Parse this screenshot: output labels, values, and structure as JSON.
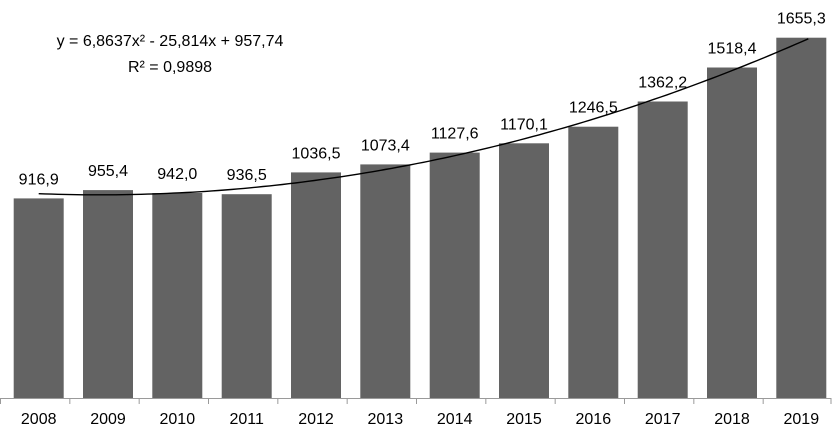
{
  "chart_data": {
    "type": "bar",
    "categories": [
      "2008",
      "2009",
      "2010",
      "2011",
      "2012",
      "2013",
      "2014",
      "2015",
      "2016",
      "2017",
      "2018",
      "2019"
    ],
    "values": [
      916.9,
      955.4,
      942.0,
      936.5,
      1036.5,
      1073.4,
      1127.6,
      1170.1,
      1246.5,
      1362.2,
      1518.4,
      1655.3
    ],
    "data_labels": [
      "916,9",
      "955,4",
      "942,0",
      "936,5",
      "1036,5",
      "1073,4",
      "1127,6",
      "1170,1",
      "1246,5",
      "1362,2",
      "1518,4",
      "1655,3"
    ],
    "title": "",
    "xlabel": "",
    "ylabel": "",
    "ylim": [
      0,
      1700
    ],
    "grid": false,
    "legend": "none",
    "bar_color": "#636363",
    "trendline": {
      "type": "polynomial",
      "order": 2,
      "coefficients": [
        6.8637,
        -25.814,
        957.74
      ],
      "equation": "y = 6,8637x² - 25,814x + 957,74",
      "r_squared": "R² = 0,9898",
      "color": "#000000"
    }
  }
}
